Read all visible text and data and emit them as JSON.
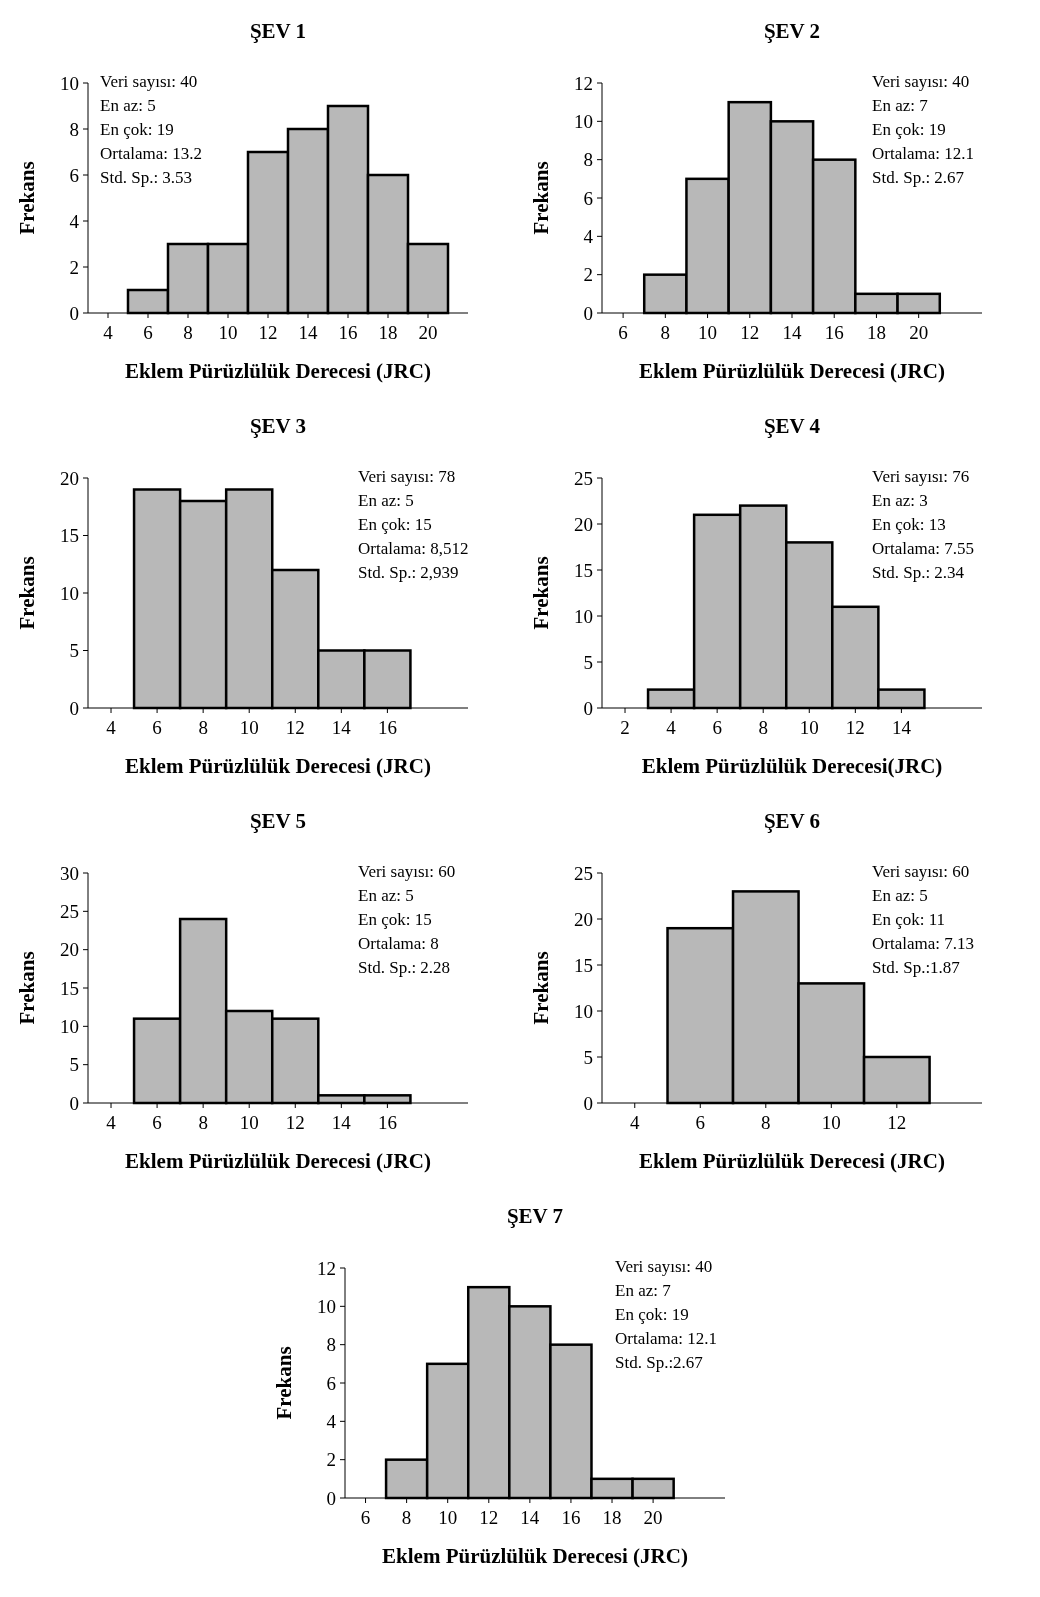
{
  "chart_data": [
    {
      "type": "histogram",
      "title": "ŞEV 1",
      "xlabel": "Eklem Pürüzlülük Derecesi (JRC)",
      "ylabel": "Frekans",
      "bins": [
        5,
        7,
        9,
        11,
        13,
        15,
        17,
        19,
        21
      ],
      "values": [
        1,
        3,
        3,
        7,
        8,
        9,
        6,
        3
      ],
      "color": "#b8b8b8",
      "xlim": [
        3,
        22
      ],
      "xticks": [
        4,
        6,
        8,
        10,
        12,
        14,
        16,
        18,
        20
      ],
      "ylim": [
        0,
        10
      ],
      "yticks": [
        0,
        2,
        4,
        6,
        8,
        10
      ],
      "annotations": [
        "Veri sayısı: 40",
        "En az: 5",
        "En çok: 19",
        "Ortalama: 13.2",
        "Std. Sp.: 3.53"
      ]
    },
    {
      "type": "histogram",
      "title": "ŞEV 2",
      "xlabel": "Eklem Pürüzlülük Derecesi (JRC)",
      "ylabel": "Frekans",
      "bins": [
        7,
        9,
        11,
        13,
        15,
        17,
        19,
        21
      ],
      "values": [
        2,
        7,
        11,
        10,
        8,
        1,
        1
      ],
      "color": "#b8b8b8",
      "xlim": [
        5,
        23
      ],
      "xticks": [
        6,
        8,
        10,
        12,
        14,
        16,
        18,
        20
      ],
      "ylim": [
        0,
        12
      ],
      "yticks": [
        0,
        2,
        4,
        6,
        8,
        10,
        12
      ],
      "annotations": [
        "Veri sayısı: 40",
        "En az: 7",
        "En çok: 19",
        "Ortalama: 12.1",
        "Std. Sp.: 2.67"
      ]
    },
    {
      "type": "histogram",
      "title": "ŞEV 3",
      "xlabel": "Eklem Pürüzlülük Derecesi (JRC)",
      "ylabel": "Frekans",
      "bins": [
        5,
        7,
        9,
        11,
        13,
        15,
        17
      ],
      "values": [
        19,
        18,
        19,
        12,
        5,
        5
      ],
      "color": "#b8b8b8",
      "xlim": [
        3,
        19.5
      ],
      "xticks": [
        4,
        6,
        8,
        10,
        12,
        14,
        16
      ],
      "ylim": [
        0,
        20
      ],
      "yticks": [
        0,
        5,
        10,
        15,
        20
      ],
      "annotations": [
        "Veri sayısı: 78",
        "En az: 5",
        "En çok: 15",
        "Ortalama: 8,512",
        "Std. Sp.: 2,939"
      ]
    },
    {
      "type": "histogram",
      "title": "ŞEV 4",
      "xlabel": "Eklem Pürüzlülük Derecesi(JRC)",
      "ylabel": "Frekans",
      "bins": [
        3,
        5,
        7,
        9,
        11,
        13,
        15
      ],
      "values": [
        2,
        21,
        22,
        18,
        11,
        2
      ],
      "color": "#b8b8b8",
      "xlim": [
        1,
        17.5
      ],
      "xticks": [
        2,
        4,
        6,
        8,
        10,
        12,
        14
      ],
      "ylim": [
        0,
        25
      ],
      "yticks": [
        0,
        5,
        10,
        15,
        20,
        25
      ],
      "annotations": [
        "Veri sayısı: 76",
        "En az: 3",
        "En çok: 13",
        "Ortalama: 7.55",
        "Std. Sp.: 2.34"
      ]
    },
    {
      "type": "histogram",
      "title": "ŞEV 5",
      "xlabel": "Eklem Pürüzlülük Derecesi (JRC)",
      "ylabel": "Frekans",
      "bins": [
        5,
        7,
        9,
        11,
        13,
        15,
        17
      ],
      "values": [
        11,
        24,
        12,
        11,
        1,
        1
      ],
      "color": "#b8b8b8",
      "xlim": [
        3,
        19.5
      ],
      "xticks": [
        4,
        6,
        8,
        10,
        12,
        14,
        16
      ],
      "ylim": [
        0,
        30
      ],
      "yticks": [
        0,
        5,
        10,
        15,
        20,
        25,
        30
      ],
      "annotations": [
        "Veri sayısı: 60",
        "En az: 5",
        "En çok: 15",
        "Ortalama: 8",
        "Std. Sp.: 2.28"
      ]
    },
    {
      "type": "histogram",
      "title": "ŞEV 6",
      "xlabel": "Eklem Pürüzlülük Derecesi (JRC)",
      "ylabel": "Frekans",
      "bins": [
        5,
        7,
        9,
        11,
        13
      ],
      "values": [
        19,
        23,
        13,
        5
      ],
      "color": "#b8b8b8",
      "xlim": [
        3,
        14.6
      ],
      "xticks": [
        4,
        6,
        8,
        10,
        12
      ],
      "ylim": [
        0,
        25
      ],
      "yticks": [
        0,
        5,
        10,
        15,
        20,
        25
      ],
      "annotations": [
        "Veri sayısı: 60",
        "En az: 5",
        "En çok: 11",
        "Ortalama: 7.13",
        "Std. Sp.:1.87"
      ]
    },
    {
      "type": "histogram",
      "title": "ŞEV 7",
      "xlabel": "Eklem Pürüzlülük Derecesi (JRC)",
      "ylabel": "Frekans",
      "bins": [
        7,
        9,
        11,
        13,
        15,
        17,
        19,
        21
      ],
      "values": [
        2,
        7,
        11,
        10,
        8,
        1,
        1
      ],
      "color": "#b8b8b8",
      "xlim": [
        5,
        23.5
      ],
      "xticks": [
        6,
        8,
        10,
        12,
        14,
        16,
        18,
        20
      ],
      "ylim": [
        0,
        12
      ],
      "yticks": [
        0,
        2,
        4,
        6,
        8,
        10,
        12
      ],
      "annotations": [
        "Veri sayısı: 40",
        "En az: 7",
        "En çok: 19",
        "Ortalama: 12.1",
        "Std. Sp.:2.67"
      ]
    }
  ]
}
